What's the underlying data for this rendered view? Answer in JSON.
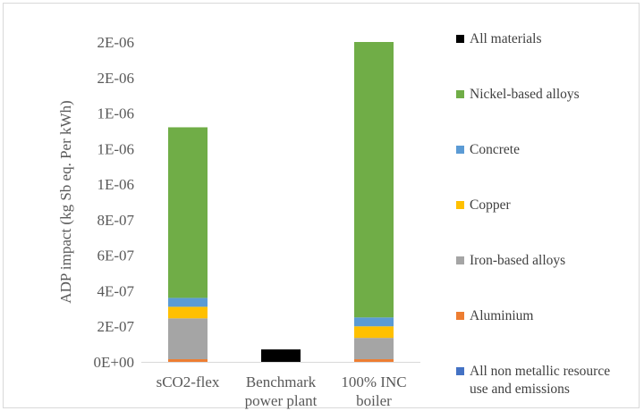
{
  "chart_data": {
    "type": "bar",
    "stacked": true,
    "title": "",
    "xlabel": "",
    "ylabel": "ADP impact (kg Sb eq. Per kWh)",
    "ylim": [
      0,
      1.8e-06
    ],
    "y_tick_labels": [
      "0E+00",
      "2E-07",
      "4E-07",
      "6E-07",
      "8E-07",
      "1E-06",
      "1E-06",
      "1E-06",
      "2E-06",
      "2E-06"
    ],
    "categories": [
      [
        "sCO2-flex"
      ],
      [
        "Benchmark",
        "power plant"
      ],
      [
        "100% INC",
        "boiler"
      ]
    ],
    "series": [
      {
        "name": "All non metallic resource use and emissions",
        "color": "#4472C4",
        "values": [
          0,
          0,
          0
        ]
      },
      {
        "name": "Aluminium",
        "color": "#ED7D31",
        "values": [
          1.5e-08,
          0,
          1.5e-08
        ]
      },
      {
        "name": "Iron-based alloys",
        "color": "#A5A5A5",
        "values": [
          2.3e-07,
          0,
          1.2e-07
        ]
      },
      {
        "name": "Copper",
        "color": "#FFC000",
        "values": [
          6.5e-08,
          0,
          6.5e-08
        ]
      },
      {
        "name": "Concrete",
        "color": "#5B9BD5",
        "values": [
          5e-08,
          0,
          5e-08
        ]
      },
      {
        "name": "Nickel-based alloys",
        "color": "#70AD47",
        "values": [
          9.6e-07,
          0,
          1.55e-06
        ]
      },
      {
        "name": "All materials",
        "color": "#000000",
        "values": [
          0,
          7e-08,
          0
        ]
      }
    ],
    "legend_order": [
      "All materials",
      "Nickel-based alloys",
      "Concrete",
      "Copper",
      "Iron-based alloys",
      "Aluminium",
      "All non metallic resource use and emissions"
    ],
    "legend_labels": [
      [
        "All materials"
      ],
      [
        "Nickel-based alloys"
      ],
      [
        "Concrete"
      ],
      [
        "Copper"
      ],
      [
        "Iron-based alloys"
      ],
      [
        "Aluminium"
      ],
      [
        "All non metallic resource",
        "use and emissions"
      ]
    ],
    "legend_position": "right",
    "grid": false,
    "axis_color": "#d9d9d9",
    "text_color": "#595959"
  }
}
